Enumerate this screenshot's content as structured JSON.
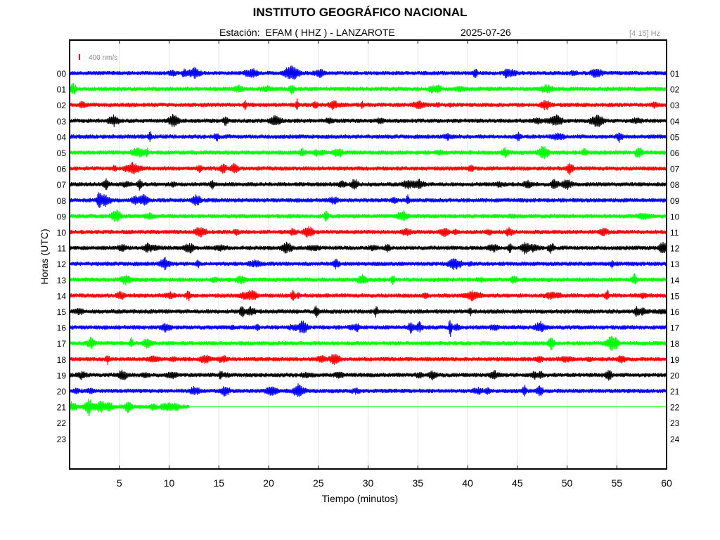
{
  "header": {
    "title": "INSTITUTO GEOGRÁFICO NACIONAL",
    "station_label": "Estación:  EFAM ( HHZ ) - LANZAROTE",
    "date": "2025-07-26",
    "filter_band": "[4 15] Hz"
  },
  "chart_data": {
    "type": "line",
    "title": "INSTITUTO GEOGRÁFICO NACIONAL",
    "xlabel": "Tiempo (minutos)",
    "ylabel": "Horas (UTC)",
    "xlim": [
      0,
      60
    ],
    "x_ticks": [
      5,
      10,
      15,
      20,
      25,
      30,
      35,
      40,
      45,
      50,
      55,
      60
    ],
    "grid": true,
    "scale_bar_label": "400 nm/s",
    "scale_bar_color": "#ff0000",
    "left_hour_labels": [
      "00",
      "01",
      "02",
      "03",
      "04",
      "05",
      "06",
      "07",
      "08",
      "09",
      "10",
      "11",
      "12",
      "13",
      "14",
      "15",
      "16",
      "17",
      "18",
      "19",
      "20",
      "21",
      "22",
      "23"
    ],
    "right_hour_labels": [
      "01",
      "02",
      "03",
      "04",
      "05",
      "06",
      "07",
      "08",
      "09",
      "10",
      "11",
      "12",
      "13",
      "14",
      "15",
      "16",
      "17",
      "18",
      "19",
      "20",
      "21",
      "22",
      "23",
      "24"
    ],
    "color_cycle": [
      "#0000ff",
      "#00ff00",
      "#ff0000",
      "#000000"
    ],
    "series": [
      {
        "hour": 0,
        "color": "#0000ff",
        "recorded_until_min": 60
      },
      {
        "hour": 1,
        "color": "#00ff00",
        "recorded_until_min": 60
      },
      {
        "hour": 2,
        "color": "#ff0000",
        "recorded_until_min": 60
      },
      {
        "hour": 3,
        "color": "#000000",
        "recorded_until_min": 60
      },
      {
        "hour": 4,
        "color": "#0000ff",
        "recorded_until_min": 60
      },
      {
        "hour": 5,
        "color": "#00ff00",
        "recorded_until_min": 60
      },
      {
        "hour": 6,
        "color": "#ff0000",
        "recorded_until_min": 60
      },
      {
        "hour": 7,
        "color": "#000000",
        "recorded_until_min": 60
      },
      {
        "hour": 8,
        "color": "#0000ff",
        "recorded_until_min": 60
      },
      {
        "hour": 9,
        "color": "#00ff00",
        "recorded_until_min": 60
      },
      {
        "hour": 10,
        "color": "#ff0000",
        "recorded_until_min": 60
      },
      {
        "hour": 11,
        "color": "#000000",
        "recorded_until_min": 60
      },
      {
        "hour": 12,
        "color": "#0000ff",
        "recorded_until_min": 60
      },
      {
        "hour": 13,
        "color": "#00ff00",
        "recorded_until_min": 60
      },
      {
        "hour": 14,
        "color": "#ff0000",
        "recorded_until_min": 60
      },
      {
        "hour": 15,
        "color": "#000000",
        "recorded_until_min": 60
      },
      {
        "hour": 16,
        "color": "#0000ff",
        "recorded_until_min": 60
      },
      {
        "hour": 17,
        "color": "#00ff00",
        "recorded_until_min": 60
      },
      {
        "hour": 18,
        "color": "#ff0000",
        "recorded_until_min": 60
      },
      {
        "hour": 19,
        "color": "#000000",
        "recorded_until_min": 60
      },
      {
        "hour": 20,
        "color": "#0000ff",
        "recorded_until_min": 60
      },
      {
        "hour": 21,
        "color": "#00ff00",
        "recorded_until_min": 12
      }
    ]
  }
}
